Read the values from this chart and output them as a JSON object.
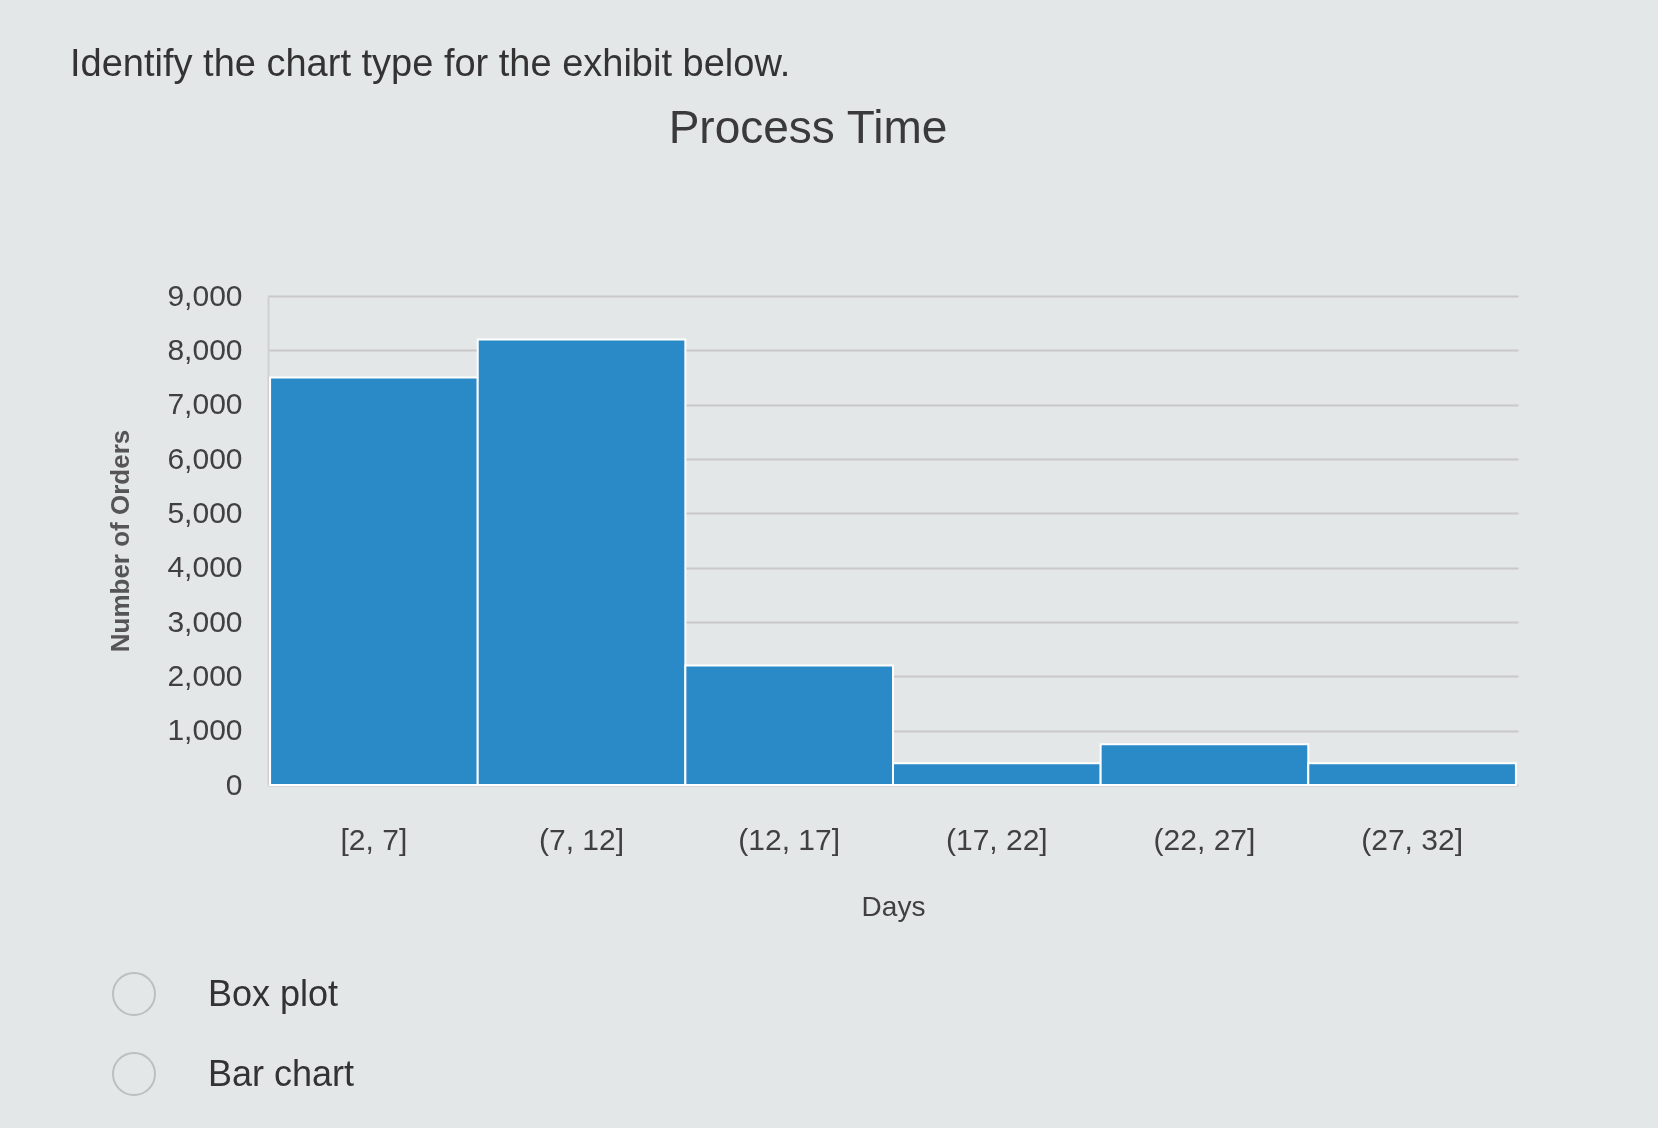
{
  "chart_data": {
    "type": "bar",
    "title": "Process Time",
    "xlabel": "Days",
    "ylabel": "Number of Orders",
    "categories": [
      "[2, 7]",
      "(7, 12]",
      "(12, 17]",
      "(17, 22]",
      "(22, 27]",
      "(27, 32]"
    ],
    "values": [
      7500,
      8200,
      2200,
      400,
      750,
      400
    ],
    "color": "#2a8ac8",
    "ylim": [
      0,
      9000
    ],
    "yticks": [
      0,
      {
        "value": 1000,
        "label": "1,000"
      },
      {
        "value": 2000,
        "label": "2,000"
      },
      {
        "value": 3000,
        "label": "3,000"
      },
      {
        "value": 4000,
        "label": "4,000"
      },
      {
        "value": 5000,
        "label": "5,000"
      },
      {
        "value": 6000,
        "label": "6,000"
      },
      {
        "value": 7000,
        "label": "7,000"
      },
      {
        "value": 8000,
        "label": "8,000"
      },
      {
        "value": 9000,
        "label": "9,000"
      }
    ],
    "grid": "y",
    "annotations": [
      "Identify the chart type for the exhibit below.",
      "Box plot",
      "Bar chart"
    ]
  }
}
